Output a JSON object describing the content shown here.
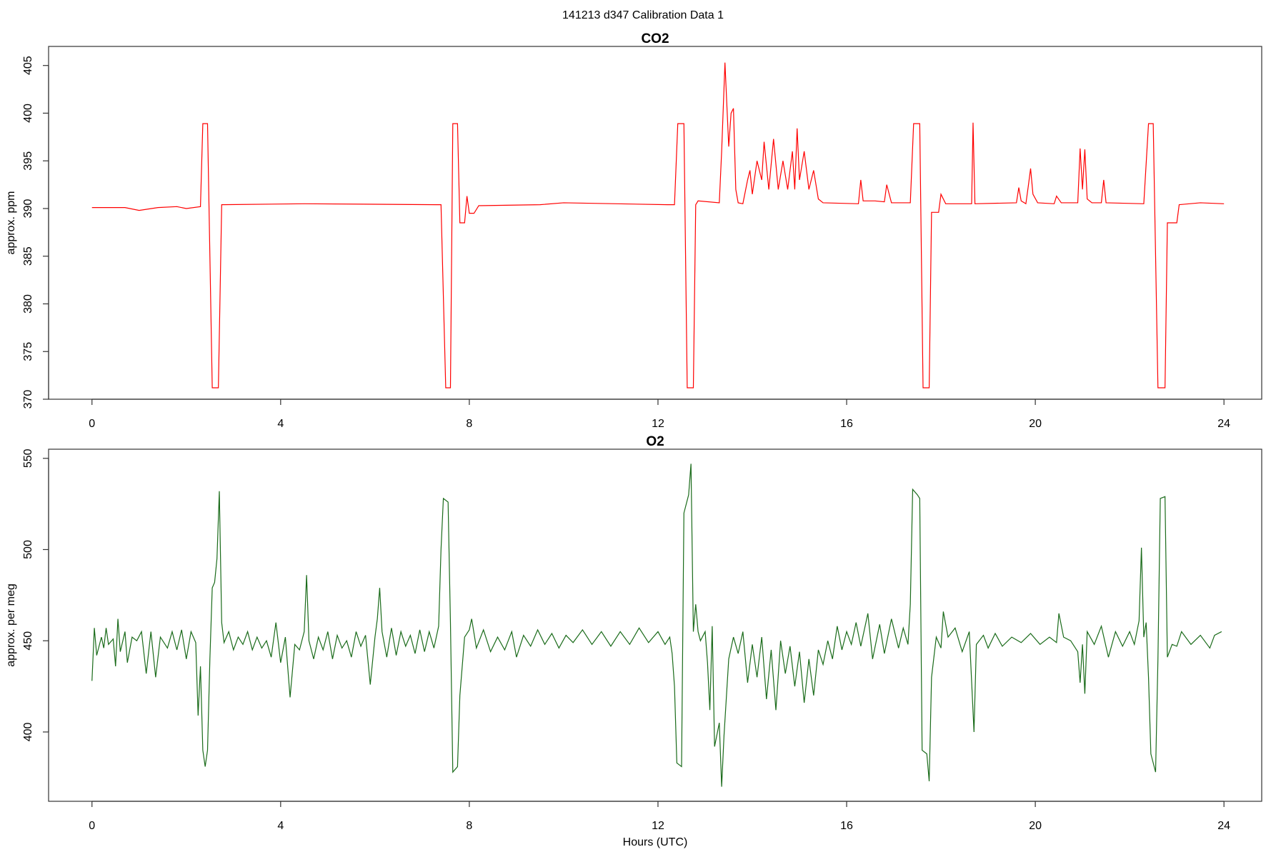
{
  "title": "141213   d347   Calibration Data 1",
  "chart_data": [
    {
      "type": "line",
      "title": "CO2",
      "ylabel": "approx. ppm",
      "xlim": [
        -0.92,
        24.8
      ],
      "xticks": [
        0,
        4,
        8,
        12,
        16,
        20,
        24
      ],
      "ylim": [
        370,
        407
      ],
      "yticks": [
        370,
        375,
        380,
        385,
        390,
        395,
        400,
        405
      ],
      "x": [
        0,
        0.7,
        1.0,
        1.4,
        1.8,
        2.0,
        2.3,
        2.35,
        2.45,
        2.55,
        2.68,
        2.75,
        4.5,
        7.3,
        7.4,
        7.5,
        7.6,
        7.65,
        7.75,
        7.8,
        7.9,
        7.95,
        8.0,
        8.1,
        8.2,
        9.5,
        10,
        12.2,
        12.35,
        12.42,
        12.55,
        12.62,
        12.75,
        12.8,
        12.85,
        13.3,
        13.35,
        13.42,
        13.5,
        13.55,
        13.6,
        13.65,
        13.7,
        13.8,
        13.9,
        13.95,
        14.0,
        14.1,
        14.2,
        14.25,
        14.35,
        14.45,
        14.55,
        14.65,
        14.75,
        14.85,
        14.9,
        14.95,
        15.0,
        15.1,
        15.2,
        15.3,
        15.4,
        15.5,
        16.25,
        16.3,
        16.35,
        16.6,
        16.8,
        16.85,
        16.95,
        17.35,
        17.42,
        17.55,
        17.62,
        17.75,
        17.8,
        17.95,
        18.0,
        18.1,
        18.65,
        18.68,
        18.72,
        19.6,
        19.65,
        19.7,
        19.8,
        19.85,
        19.9,
        19.95,
        20.05,
        20.4,
        20.45,
        20.55,
        20.9,
        20.95,
        21.0,
        21.05,
        21.1,
        21.2,
        21.4,
        21.45,
        21.5,
        22.3,
        22.4,
        22.5,
        22.6,
        22.75,
        22.8,
        23.0,
        23.05,
        23.5,
        24
      ],
      "series": [
        {
          "name": "CO2",
          "color": "#ff0000",
          "values": [
            390.1,
            390.1,
            389.8,
            390.1,
            390.2,
            390.0,
            390.2,
            398.9,
            398.9,
            371.2,
            371.2,
            390.4,
            390.5,
            390.4,
            390.4,
            371.2,
            371.2,
            398.9,
            398.9,
            388.5,
            388.5,
            391.3,
            389.5,
            389.5,
            390.3,
            390.4,
            390.6,
            390.4,
            390.4,
            398.9,
            398.9,
            371.2,
            371.2,
            390.4,
            390.8,
            390.6,
            396,
            405.3,
            396.5,
            400,
            400.5,
            392,
            390.6,
            390.5,
            393,
            394,
            391.5,
            395,
            393,
            397,
            392,
            397.3,
            392,
            395,
            392,
            396,
            392,
            398.4,
            393,
            396,
            392,
            394,
            391,
            390.6,
            390.5,
            393,
            390.8,
            390.8,
            390.7,
            392.5,
            390.6,
            390.6,
            398.9,
            398.9,
            371.2,
            371.2,
            389.6,
            389.6,
            391.5,
            390.5,
            390.5,
            399,
            390.5,
            390.6,
            392.2,
            390.8,
            390.5,
            392.3,
            394.2,
            391.5,
            390.6,
            390.5,
            391.3,
            390.6,
            390.6,
            396.3,
            392,
            396.2,
            391,
            390.6,
            390.6,
            393,
            390.6,
            390.5,
            398.9,
            398.9,
            371.2,
            371.2,
            388.5,
            388.5,
            390.4,
            390.6,
            390.5
          ]
        }
      ]
    },
    {
      "type": "line",
      "title": "O2",
      "ylabel": "approx. per meg",
      "xlabel": "Hours (UTC)",
      "xlim": [
        -0.92,
        24.8
      ],
      "xticks": [
        0,
        4,
        8,
        12,
        16,
        20,
        24
      ],
      "ylim": [
        362,
        555
      ],
      "yticks": [
        400,
        450,
        500,
        550
      ],
      "x": [
        0,
        0.05,
        0.1,
        0.2,
        0.25,
        0.3,
        0.35,
        0.45,
        0.5,
        0.55,
        0.6,
        0.7,
        0.75,
        0.85,
        0.95,
        1.05,
        1.15,
        1.25,
        1.35,
        1.45,
        1.6,
        1.7,
        1.8,
        1.9,
        2.0,
        2.1,
        2.2,
        2.25,
        2.3,
        2.35,
        2.4,
        2.45,
        2.5,
        2.55,
        2.6,
        2.65,
        2.7,
        2.75,
        2.8,
        2.9,
        3.0,
        3.1,
        3.2,
        3.3,
        3.4,
        3.5,
        3.6,
        3.7,
        3.8,
        3.9,
        4.0,
        4.1,
        4.2,
        4.3,
        4.4,
        4.5,
        4.55,
        4.6,
        4.7,
        4.8,
        4.9,
        5.0,
        5.1,
        5.2,
        5.3,
        5.4,
        5.5,
        5.6,
        5.7,
        5.8,
        5.9,
        6.0,
        6.05,
        6.1,
        6.15,
        6.25,
        6.35,
        6.45,
        6.55,
        6.65,
        6.75,
        6.85,
        6.95,
        7.05,
        7.15,
        7.25,
        7.35,
        7.4,
        7.45,
        7.55,
        7.6,
        7.65,
        7.75,
        7.8,
        7.9,
        8.0,
        8.05,
        8.15,
        8.3,
        8.45,
        8.6,
        8.75,
        8.9,
        9.0,
        9.15,
        9.3,
        9.45,
        9.6,
        9.75,
        9.9,
        10.05,
        10.2,
        10.4,
        10.6,
        10.8,
        11.0,
        11.2,
        11.4,
        11.6,
        11.8,
        12.0,
        12.15,
        12.25,
        12.3,
        12.35,
        12.4,
        12.5,
        12.55,
        12.6,
        12.65,
        12.7,
        12.75,
        12.8,
        12.85,
        12.9,
        13.0,
        13.05,
        13.1,
        13.15,
        13.2,
        13.3,
        13.35,
        13.4,
        13.5,
        13.6,
        13.7,
        13.8,
        13.9,
        14.0,
        14.1,
        14.2,
        14.3,
        14.4,
        14.5,
        14.6,
        14.7,
        14.8,
        14.9,
        15.0,
        15.1,
        15.2,
        15.3,
        15.4,
        15.5,
        15.6,
        15.7,
        15.8,
        15.9,
        16.0,
        16.1,
        16.2,
        16.3,
        16.45,
        16.55,
        16.7,
        16.8,
        16.95,
        17.1,
        17.2,
        17.3,
        17.35,
        17.4,
        17.5,
        17.55,
        17.6,
        17.7,
        17.75,
        17.8,
        17.9,
        18.0,
        18.05,
        18.15,
        18.3,
        18.45,
        18.6,
        18.7,
        18.75,
        18.9,
        19.0,
        19.15,
        19.3,
        19.5,
        19.7,
        19.9,
        20.1,
        20.3,
        20.45,
        20.5,
        20.6,
        20.75,
        20.9,
        20.95,
        21.0,
        21.05,
        21.1,
        21.25,
        21.4,
        21.55,
        21.7,
        21.85,
        22.0,
        22.1,
        22.2,
        22.25,
        22.3,
        22.35,
        22.4,
        22.45,
        22.55,
        22.6,
        22.65,
        22.75,
        22.8,
        22.9,
        23.0,
        23.1,
        23.3,
        23.5,
        23.7,
        23.8,
        23.95
      ],
      "series": [
        {
          "name": "O2",
          "color": "#1a6b1a",
          "values": [
            428,
            457,
            442,
            452,
            446,
            457,
            448,
            451,
            436,
            462,
            444,
            455,
            438,
            452,
            450,
            455,
            432,
            455,
            430,
            452,
            446,
            455,
            445,
            456,
            440,
            455,
            449,
            409,
            436,
            390,
            381,
            390,
            440,
            479,
            482,
            495,
            532,
            460,
            449,
            455,
            445,
            452,
            448,
            455,
            445,
            452,
            446,
            450,
            441,
            460,
            438,
            452,
            419,
            448,
            445,
            455,
            486,
            450,
            440,
            452,
            445,
            455,
            440,
            453,
            446,
            450,
            441,
            455,
            447,
            453,
            426,
            452,
            462,
            479,
            455,
            441,
            457,
            442,
            455,
            447,
            453,
            443,
            456,
            444,
            455,
            446,
            458,
            500,
            528,
            526,
            460,
            378,
            381,
            420,
            452,
            456,
            462,
            446,
            456,
            444,
            452,
            445,
            455,
            441,
            453,
            447,
            456,
            448,
            454,
            446,
            453,
            449,
            456,
            448,
            455,
            447,
            455,
            448,
            457,
            449,
            455,
            448,
            452,
            443,
            425,
            383,
            381,
            520,
            525,
            530,
            547,
            455,
            470,
            455,
            450,
            455,
            438,
            412,
            458,
            392,
            405,
            370,
            398,
            440,
            452,
            443,
            455,
            427,
            448,
            430,
            452,
            418,
            445,
            412,
            450,
            432,
            447,
            425,
            444,
            416,
            440,
            420,
            445,
            437,
            450,
            440,
            458,
            445,
            455,
            448,
            460,
            447,
            465,
            440,
            459,
            443,
            462,
            446,
            457,
            448,
            470,
            533,
            530,
            528,
            390,
            388,
            373,
            430,
            452,
            446,
            466,
            452,
            457,
            444,
            455,
            400,
            448,
            453,
            446,
            454,
            447,
            452,
            449,
            454,
            448,
            452,
            449,
            465,
            452,
            450,
            444,
            427,
            448,
            421,
            455,
            448,
            458,
            441,
            455,
            447,
            455,
            448,
            461,
            501,
            452,
            460,
            430,
            388,
            378,
            440,
            528,
            529,
            441,
            448,
            447,
            455,
            448,
            453,
            446,
            453,
            455
          ]
        }
      ]
    }
  ]
}
